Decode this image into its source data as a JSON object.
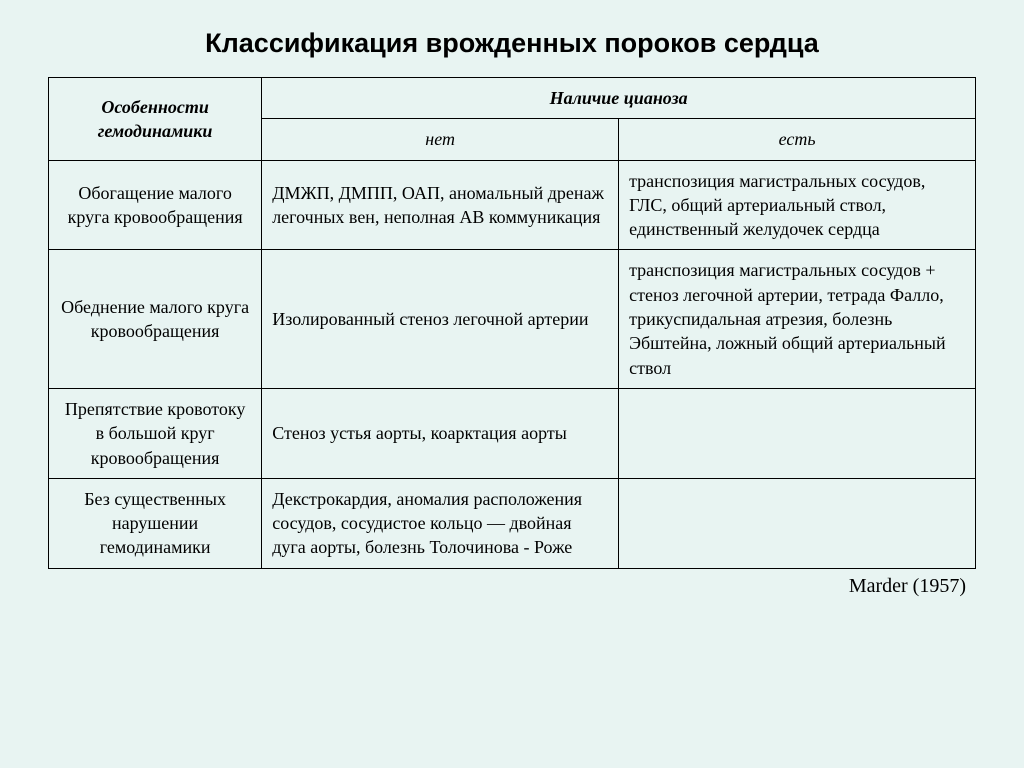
{
  "title": "Классификация врожденных пороков сердца",
  "credit": "Marder (1957)",
  "table": {
    "header": {
      "rowhead": "Особенности гемодинамики",
      "spanhead": "Наличие цианоза",
      "sub1": "нет",
      "sub2": "есть"
    },
    "rows": [
      {
        "head": "Обогащение малого круга кровообращения",
        "no": "ДМЖП, ДМПП, ОАП, аномальный дренаж легочных вен, неполная АВ коммуникация",
        "yes": "транспозиция магистральных сосудов, ГЛС, общий артериальный ствол, единственный желудочек сердца"
      },
      {
        "head": "Обеднение малого круга кровообращения",
        "no": "Изолированный стеноз легочной артерии",
        "yes": "транспозиция магистральных сосудов + стеноз легочной артерии, тетрада Фалло, трикуспидальная атрезия, болезнь Эбштейна, ложный общий артериальный ствол"
      },
      {
        "head": "Препятствие кровотоку в большой круг кровообращения",
        "no": "Стеноз устья аорты, коарктация аорты",
        "yes": ""
      },
      {
        "head": "Без существенных нарушении гемодинамики",
        "no": "Декстрокардия, аномалия расположения сосудов, сосудистое кольцо — двойная дуга аорты, болезнь Толочинова - Роже",
        "yes": ""
      }
    ]
  }
}
